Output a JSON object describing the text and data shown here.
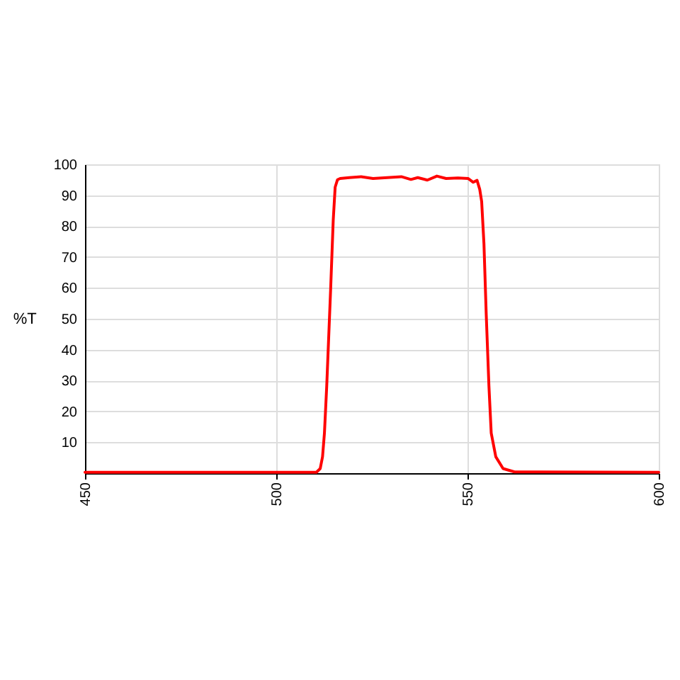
{
  "chart_data": {
    "type": "line",
    "ylabel": "%T",
    "x": [
      450,
      510.5,
      511.5,
      512.1,
      512.6,
      513.2,
      514.2,
      514.9,
      515.4,
      516.0,
      516.7,
      519.1,
      522.2,
      525.3,
      529.0,
      532.7,
      535.2,
      537.0,
      539.5,
      542.0,
      544.4,
      547.5,
      550.2,
      551.5,
      552.5,
      553.2,
      553.7,
      554.3,
      554.9,
      555.6,
      556.2,
      557.4,
      559.3,
      562.3,
      600
    ],
    "series": [
      {
        "color": "#ff0000",
        "values": [
          0.3,
          0.3,
          1.5,
          5.3,
          13,
          28.3,
          59,
          82,
          92.6,
          95,
          95.4,
          95.7,
          96.0,
          95.4,
          95.7,
          96.0,
          95.1,
          95.7,
          94.9,
          96.2,
          95.4,
          95.6,
          95.4,
          94.2,
          94.8,
          91.9,
          88,
          74.3,
          51.3,
          28.3,
          13,
          5.3,
          1.5,
          0.4,
          0.3
        ]
      }
    ],
    "xlim": [
      450,
      600
    ],
    "xticks": [
      450,
      500,
      550,
      600
    ],
    "ylim": [
      0,
      100
    ],
    "yticks": [
      10,
      20,
      30,
      40,
      50,
      60,
      70,
      80,
      90,
      100
    ],
    "grid": true,
    "line_style": "solid"
  }
}
